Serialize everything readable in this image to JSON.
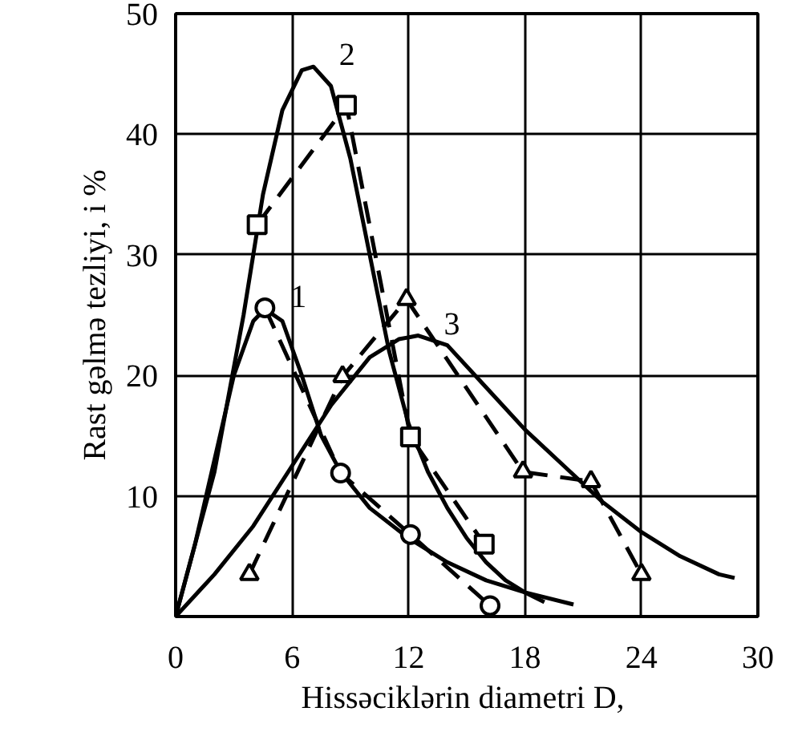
{
  "chart_data": {
    "type": "line",
    "xlabel": "Hissəciklərin diametri  D,",
    "ylabel": "Rast gəlmə tezliyi, i %",
    "xlim": [
      0,
      30
    ],
    "ylim": [
      0,
      50
    ],
    "xticks": [
      0,
      6,
      12,
      18,
      24,
      30
    ],
    "yticks": [
      10,
      20,
      30,
      40,
      50
    ],
    "grid": true,
    "series": [
      {
        "name": "1",
        "color": "#000000",
        "line_style": "solid",
        "marker": "none",
        "x": [
          0,
          1,
          2,
          3,
          4,
          4.6,
          5.5,
          6.5,
          7.5,
          8.5,
          10,
          12,
          14,
          16,
          18,
          20.5
        ],
        "values": [
          0,
          6,
          13,
          20,
          24.5,
          25.5,
          24.5,
          20,
          15,
          12,
          9,
          6.5,
          4.5,
          3,
          2,
          1
        ]
      },
      {
        "name": "2",
        "color": "#000000",
        "line_style": "solid",
        "marker": "none",
        "x": [
          0,
          2,
          3.5,
          4.5,
          5.5,
          6.5,
          7.1,
          8,
          9,
          10,
          11,
          12,
          13,
          14,
          15,
          16,
          17,
          18,
          19
        ],
        "values": [
          0,
          12,
          25,
          35,
          42,
          45.3,
          45.6,
          44,
          38,
          30,
          22,
          16,
          12,
          9,
          6.5,
          4.5,
          3,
          2,
          1.2
        ]
      },
      {
        "name": "3",
        "color": "#000000",
        "line_style": "solid",
        "marker": "none",
        "x": [
          0,
          2,
          4,
          6,
          8,
          10,
          11.5,
          12.5,
          14,
          16,
          18,
          20,
          22,
          24,
          26,
          28,
          28.8
        ],
        "values": [
          0,
          3.5,
          7.5,
          12.5,
          17.5,
          21.5,
          23,
          23.3,
          22.5,
          19,
          15.5,
          12.5,
          9.5,
          7,
          5,
          3.5,
          3.2
        ]
      },
      {
        "color": "#000000",
        "line_style": "dashed",
        "marker": "circle",
        "x": [
          4.6,
          8.5,
          12.1,
          16.2
        ],
        "values": [
          25.6,
          11.9,
          6.8,
          0.9
        ]
      },
      {
        "color": "#000000",
        "line_style": "dashed",
        "marker": "square",
        "x": [
          4.2,
          8.8,
          12.1,
          15.9
        ],
        "values": [
          32.5,
          42.4,
          14.9,
          6.0
        ]
      },
      {
        "color": "#000000",
        "line_style": "dashed",
        "marker": "triangle",
        "x": [
          3.8,
          8.6,
          11.9,
          17.9,
          21.4,
          24.0
        ],
        "values": [
          3.5,
          19.9,
          26.3,
          12.0,
          11.2,
          3.5
        ]
      }
    ]
  }
}
